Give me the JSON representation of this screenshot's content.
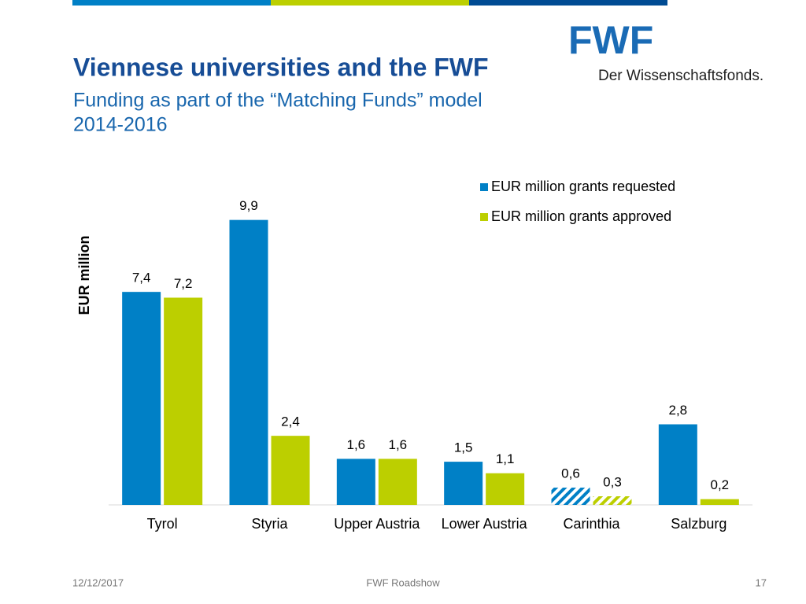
{
  "header": {
    "title": "Viennese universities and the FWF",
    "subtitle": [
      "Funding as part of the “Matching Funds” model",
      "2014-2016"
    ],
    "logo": "FWF",
    "logo_tagline": "Der Wissenschaftsfonds."
  },
  "chart_data": {
    "type": "bar",
    "ylabel": "EUR million",
    "categories": [
      "Tyrol",
      "Styria",
      "Upper Austria",
      "Lower Austria",
      "Carinthia",
      "Salzburg"
    ],
    "series": [
      {
        "name": "EUR million grants requested",
        "color": "#0080c6",
        "values": [
          7.4,
          9.9,
          1.6,
          1.5,
          0.6,
          2.8
        ],
        "value_labels": [
          "7,4",
          "9,9",
          "1,6",
          "1,5",
          "0,6",
          "2,8"
        ]
      },
      {
        "name": "EUR million grants approved",
        "color": "#bccf00",
        "values": [
          7.2,
          2.4,
          1.6,
          1.1,
          0.3,
          0.2
        ],
        "value_labels": [
          "7,2",
          "2,4",
          "1,6",
          "1,1",
          "0,3",
          "0,2"
        ]
      }
    ],
    "hatch": [
      false,
      false,
      false,
      false,
      true,
      false
    ],
    "ylim": [
      0,
      10
    ],
    "legend": "top-right"
  },
  "footer": {
    "date": "12/12/2017",
    "event": "FWF Roadshow",
    "page": "17"
  }
}
